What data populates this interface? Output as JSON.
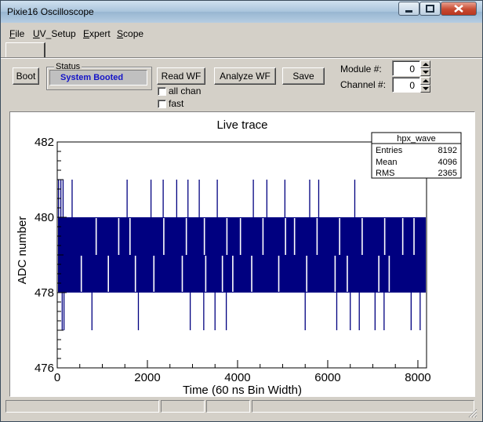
{
  "window": {
    "title": "Pixie16 Oscilloscope"
  },
  "menu": [
    {
      "label": "File"
    },
    {
      "label": "UV_Setup"
    },
    {
      "label": "Expert"
    },
    {
      "label": "Scope"
    }
  ],
  "toolbar": {
    "boot_label": "Boot",
    "status_group_label": "Status",
    "status_value": "System Booted",
    "read_wf_label": "Read WF",
    "analyze_wf_label": "Analyze WF",
    "save_label": "Save",
    "all_chan_label": "all chan",
    "fast_label": "fast",
    "module_label": "Module #:",
    "module_value": "0",
    "channel_label": "Channel #:",
    "channel_value": "0"
  },
  "icons": {
    "minimize": "minimize-icon",
    "maximize": "maximize-icon",
    "close": "close-icon",
    "spin_up": "arrow-up-icon",
    "spin_down": "arrow-down-icon",
    "resize": "resize-grip-icon"
  },
  "chart_data": {
    "type": "line",
    "title": "Live trace",
    "xlabel": "Time (60 ns Bin Width)",
    "ylabel": "ADC number",
    "xlim": [
      0,
      8192
    ],
    "ylim": [
      476,
      482
    ],
    "x_ticks": [
      0,
      2000,
      4000,
      6000,
      8000
    ],
    "y_ticks": [
      476,
      478,
      480,
      482
    ],
    "line_color": "#000080",
    "band_low": 478,
    "band_high": 480,
    "spikes_up": [
      {
        "x": 30,
        "y": 481
      },
      {
        "x": 80,
        "y": 481
      },
      {
        "x": 130,
        "y": 481
      },
      {
        "x": 330,
        "y": 481
      },
      {
        "x": 1550,
        "y": 481
      },
      {
        "x": 2080,
        "y": 481
      },
      {
        "x": 2350,
        "y": 481
      },
      {
        "x": 2650,
        "y": 481
      },
      {
        "x": 2900,
        "y": 481
      },
      {
        "x": 3150,
        "y": 481
      },
      {
        "x": 3550,
        "y": 481
      },
      {
        "x": 4350,
        "y": 481
      },
      {
        "x": 4650,
        "y": 481
      },
      {
        "x": 5050,
        "y": 481
      },
      {
        "x": 5600,
        "y": 481
      },
      {
        "x": 5800,
        "y": 481
      },
      {
        "x": 6600,
        "y": 481
      }
    ],
    "spikes_down": [
      {
        "x": 110,
        "y": 477
      },
      {
        "x": 150,
        "y": 477
      },
      {
        "x": 770,
        "y": 477
      },
      {
        "x": 1800,
        "y": 477
      },
      {
        "x": 2950,
        "y": 477
      },
      {
        "x": 3250,
        "y": 477
      },
      {
        "x": 3500,
        "y": 477
      },
      {
        "x": 3750,
        "y": 477
      },
      {
        "x": 5500,
        "y": 477
      },
      {
        "x": 6200,
        "y": 477
      },
      {
        "x": 6500,
        "y": 477
      },
      {
        "x": 6700,
        "y": 477
      },
      {
        "x": 7050,
        "y": 477
      },
      {
        "x": 7250,
        "y": 477
      },
      {
        "x": 7850,
        "y": 477
      },
      {
        "x": 8050,
        "y": 477
      }
    ],
    "gaps_upper": [
      850,
      1350,
      1600,
      2350,
      2850,
      3250,
      3750,
      4050,
      4550,
      5050,
      5250,
      5750,
      6250,
      6750,
      7250,
      7650,
      7900
    ],
    "gaps_lower": [
      520,
      1120,
      1720,
      2130,
      2760,
      3280,
      3650,
      3880,
      4300,
      4900,
      5520,
      6150,
      6420,
      7120,
      7350
    ],
    "stats": {
      "title": "hpx_wave",
      "rows": [
        {
          "label": "Entries",
          "value": "8192"
        },
        {
          "label": "Mean",
          "value": "4096"
        },
        {
          "label": "RMS",
          "value": "2365"
        }
      ]
    }
  }
}
